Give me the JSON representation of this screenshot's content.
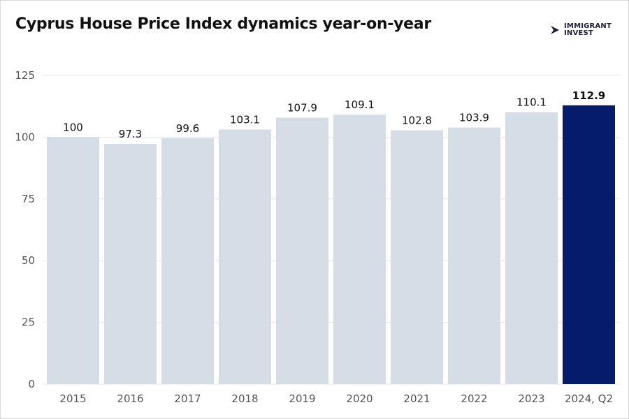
{
  "title": "Cyprus House Price Index dynamics year-on-year",
  "brand": {
    "line1": "IMMIGRANT",
    "line2": "INVEST"
  },
  "colors": {
    "bar": "#d5dee6",
    "highlight_bar": "#051b6b",
    "grid": "#e6e6e6",
    "tick_text": "#555555",
    "label_text": "#111111"
  },
  "chart_data": {
    "type": "bar",
    "title": "Cyprus House Price Index dynamics year-on-year",
    "xlabel": "",
    "ylabel": "",
    "categories": [
      "2015",
      "2016",
      "2017",
      "2018",
      "2019",
      "2020",
      "2021",
      "2022",
      "2023",
      "2024, Q2"
    ],
    "values": [
      100,
      97.3,
      99.6,
      103.1,
      107.9,
      109.1,
      102.8,
      103.9,
      110.1,
      112.9
    ],
    "value_labels": [
      "100",
      "97.3",
      "99.6",
      "103.1",
      "107.9",
      "109.1",
      "102.8",
      "103.9",
      "110.1",
      "112.9"
    ],
    "highlight_index": 9,
    "ylim": [
      0,
      125
    ],
    "yticks": [
      0,
      25,
      50,
      75,
      100,
      125
    ],
    "grid": true,
    "legend": "none"
  }
}
